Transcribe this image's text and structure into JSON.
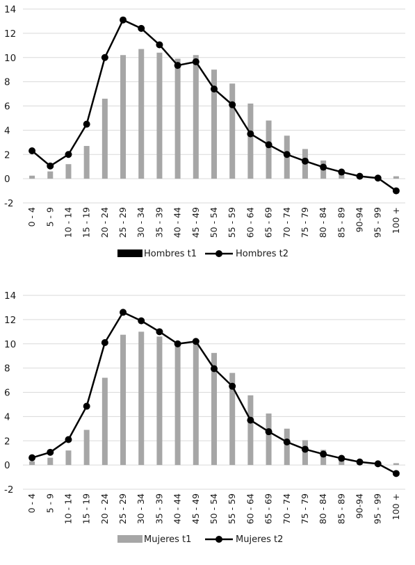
{
  "chart_data": [
    {
      "type": "bar",
      "categories": [
        "0 - 4",
        "5 - 9",
        "10 - 14",
        "15 - 19",
        "20 - 24",
        "25 - 29",
        "30 - 34",
        "35 - 39",
        "40 - 44",
        "45 - 49",
        "50 - 54",
        "55 - 59",
        "60 - 64",
        "65 - 69",
        "70 - 74",
        "75 - 79",
        "80 - 84",
        "85 - 89",
        "90-94",
        "95 - 99",
        "100 +"
      ],
      "ylim": [
        -2,
        14
      ],
      "yticks": [
        -2,
        0,
        2,
        4,
        6,
        8,
        10,
        12,
        14
      ],
      "grid": true,
      "legend_placement": "bottom",
      "series": [
        {
          "name": "Hombres t1",
          "type": "bar",
          "color": "#a6a6a6",
          "legend_color": "#000000",
          "values": [
            0.25,
            0.6,
            1.2,
            2.7,
            6.6,
            10.2,
            10.7,
            10.4,
            9.9,
            10.2,
            9.0,
            7.85,
            6.2,
            4.8,
            3.55,
            2.45,
            1.5,
            0.55,
            0.2,
            0.05,
            0.2
          ]
        },
        {
          "name": "Hombres t2",
          "type": "line",
          "color": "#000000",
          "values": [
            2.3,
            1.05,
            2.0,
            4.5,
            10.0,
            13.1,
            12.4,
            11.05,
            9.35,
            9.65,
            7.4,
            6.1,
            3.7,
            2.8,
            2.0,
            1.45,
            0.95,
            0.55,
            0.2,
            0.05,
            -1.0
          ]
        }
      ]
    },
    {
      "type": "bar",
      "categories": [
        "0 - 4",
        "5 - 9",
        "10 - 14",
        "15 - 19",
        "20 - 24",
        "25 - 29",
        "30 - 34",
        "35 - 39",
        "40 - 44",
        "45 - 49",
        "50 - 54",
        "55 - 59",
        "60 - 64",
        "65 - 69",
        "70 - 74",
        "75 - 79",
        "80 - 84",
        "85 - 89",
        "90-94",
        "95 - 99",
        "100 +"
      ],
      "ylim": [
        -2,
        14
      ],
      "yticks": [
        -2,
        0,
        2,
        4,
        6,
        8,
        10,
        12,
        14
      ],
      "grid": true,
      "legend_placement": "bottom",
      "series": [
        {
          "name": "Mujeres t1",
          "type": "bar",
          "color": "#a6a6a6",
          "legend_color": "#a6a6a6",
          "values": [
            0.3,
            0.6,
            1.2,
            2.9,
            7.2,
            10.75,
            11.0,
            10.6,
            10.0,
            10.3,
            9.25,
            7.6,
            5.75,
            4.25,
            3.0,
            2.05,
            1.25,
            0.55,
            0.3,
            0.15,
            0.15
          ]
        },
        {
          "name": "Mujeres t2",
          "type": "line",
          "color": "#000000",
          "values": [
            0.6,
            1.05,
            2.1,
            4.85,
            10.1,
            12.6,
            11.9,
            11.0,
            10.0,
            10.2,
            7.95,
            6.5,
            3.7,
            2.75,
            1.9,
            1.3,
            0.9,
            0.55,
            0.25,
            0.1,
            -0.7
          ]
        }
      ]
    }
  ]
}
